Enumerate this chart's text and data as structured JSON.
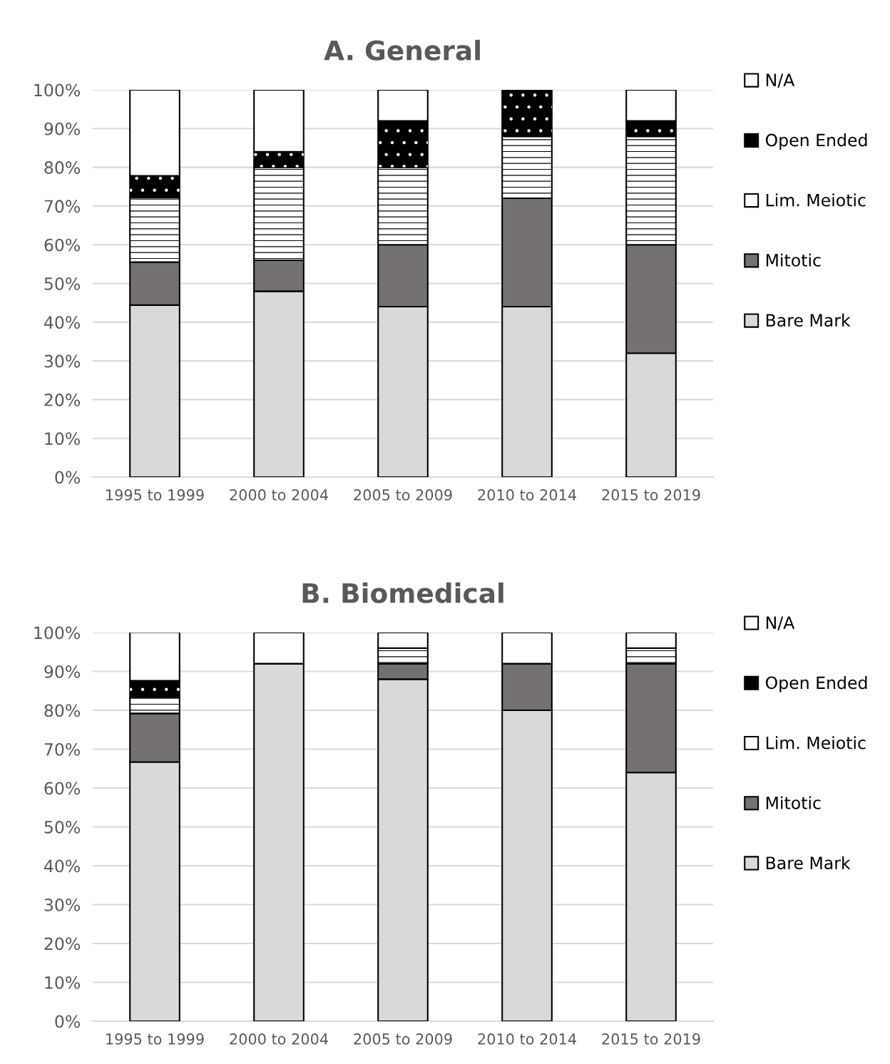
{
  "chart_data": [
    {
      "type": "bar",
      "title": "A. General",
      "stacked": true,
      "categories": [
        "1995 to 1999",
        "2000 to 2004",
        "2005 to 2009",
        "2010 to 2014",
        "2015 to 2019"
      ],
      "series": [
        {
          "name": "Bare Mark",
          "color": "#d9d9d9",
          "values": [
            44.4,
            48,
            44,
            44,
            32
          ]
        },
        {
          "name": "Mitotic",
          "color": "#767171",
          "values": [
            11.1,
            8,
            16,
            28,
            28
          ]
        },
        {
          "name": "Lim. Meiotic",
          "color": "#ffffff",
          "values": [
            16.7,
            24,
            20,
            16,
            28
          ]
        },
        {
          "name": "Open Ended",
          "color": "#000000",
          "values": [
            5.6,
            4,
            12,
            12,
            4
          ]
        },
        {
          "name": "N/A",
          "color": "#ffffff",
          "values": [
            22.2,
            16,
            8,
            0,
            8
          ]
        }
      ],
      "ylim": [
        0,
        100
      ],
      "yticks": [
        {
          "value": 0,
          "label": "0%"
        },
        {
          "value": 10,
          "label": "10%"
        },
        {
          "value": 20,
          "label": "20%"
        },
        {
          "value": 30,
          "label": "30%"
        },
        {
          "value": 40,
          "label": "40%"
        },
        {
          "value": 50,
          "label": "50%"
        },
        {
          "value": 60,
          "label": "60%"
        },
        {
          "value": 70,
          "label": "70%"
        },
        {
          "value": 80,
          "label": "80%"
        },
        {
          "value": 90,
          "label": "90%"
        },
        {
          "value": 100,
          "label": "100%"
        }
      ],
      "grid": "y",
      "legend": "right"
    },
    {
      "type": "bar",
      "title": "B. Biomedical",
      "stacked": true,
      "categories": [
        "1995 to 1999",
        "2000 to 2004",
        "2005 to 2009",
        "2010 to 2014",
        "2015 to 2019"
      ],
      "series": [
        {
          "name": "Bare Mark",
          "color": "#d9d9d9",
          "values": [
            66.7,
            92,
            88,
            80,
            64
          ]
        },
        {
          "name": "Mitotic",
          "color": "#767171",
          "values": [
            12.5,
            0,
            4,
            12,
            28
          ]
        },
        {
          "name": "Lim. Meiotic",
          "color": "#ffffff",
          "values": [
            4.2,
            0,
            4,
            0,
            4
          ]
        },
        {
          "name": "Open Ended",
          "color": "#000000",
          "values": [
            4.2,
            0,
            0,
            0,
            0
          ]
        },
        {
          "name": "N/A",
          "color": "#ffffff",
          "values": [
            12.5,
            8,
            4,
            8,
            4
          ]
        }
      ],
      "ylim": [
        0,
        100
      ],
      "yticks": [
        {
          "value": 0,
          "label": "0%"
        },
        {
          "value": 10,
          "label": "10%"
        },
        {
          "value": 20,
          "label": "20%"
        },
        {
          "value": 30,
          "label": "30%"
        },
        {
          "value": 40,
          "label": "40%"
        },
        {
          "value": 50,
          "label": "50%"
        },
        {
          "value": 60,
          "label": "60%"
        },
        {
          "value": 70,
          "label": "70%"
        },
        {
          "value": 80,
          "label": "80%"
        },
        {
          "value": 90,
          "label": "90%"
        },
        {
          "value": 100,
          "label": "100%"
        }
      ],
      "grid": "y",
      "legend": "right"
    }
  ]
}
